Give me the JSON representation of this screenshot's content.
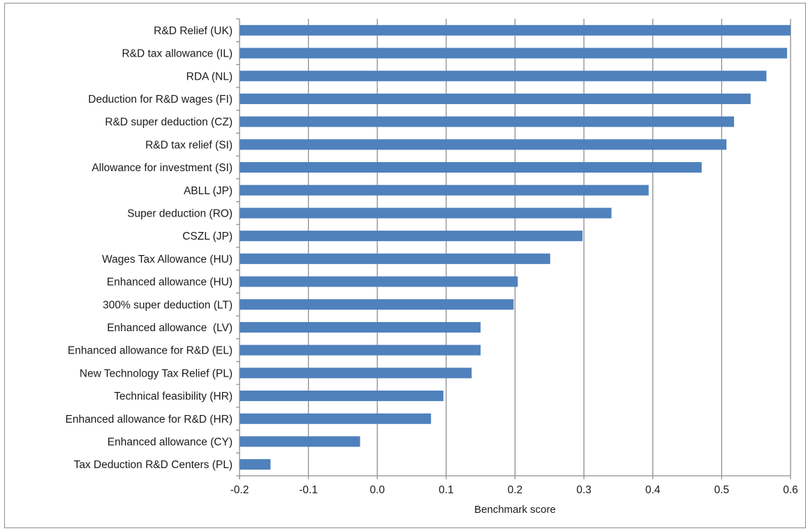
{
  "chart_data": {
    "type": "bar",
    "orientation": "horizontal",
    "title": "",
    "xlabel": "Benchmark score",
    "ylabel": "",
    "xlim": [
      -0.2,
      0.6
    ],
    "xticks": [
      -0.2,
      -0.1,
      0.0,
      0.1,
      0.2,
      0.3,
      0.4,
      0.5,
      0.6
    ],
    "xtick_labels": [
      "-0.2",
      "-0.1",
      "0.0",
      "0.1",
      "0.2",
      "0.3",
      "0.4",
      "0.5",
      "0.6"
    ],
    "grid": "vertical major gridlines",
    "legend": "none",
    "bar_color": "#4f81bd",
    "categories": [
      "R&D Relief (UK)",
      "R&D tax allowance (IL)",
      "RDA (NL)",
      "Deduction for R&D wages (FI)",
      "R&D super deduction (CZ)",
      "R&D tax relief (SI)",
      "Allowance for investment (SI)",
      "ABLL (JP)",
      "Super deduction (RO)",
      "CSZL (JP)",
      "Wages Tax Allowance (HU)",
      "Enhanced allowance (HU)",
      "300% super deduction (LT)",
      "Enhanced allowance  (LV)",
      "Enhanced allowance for R&D (EL)",
      "New Technology Tax Relief (PL)",
      "Technical feasibility (HR)",
      "Enhanced allowance for R&D (HR)",
      "Enhanced allowance (CY)",
      "Tax Deduction R&D Centers (PL)"
    ],
    "values": [
      0.6,
      0.595,
      0.565,
      0.542,
      0.518,
      0.507,
      0.471,
      0.394,
      0.34,
      0.298,
      0.251,
      0.204,
      0.198,
      0.15,
      0.15,
      0.137,
      0.096,
      0.078,
      -0.025,
      -0.155
    ]
  }
}
